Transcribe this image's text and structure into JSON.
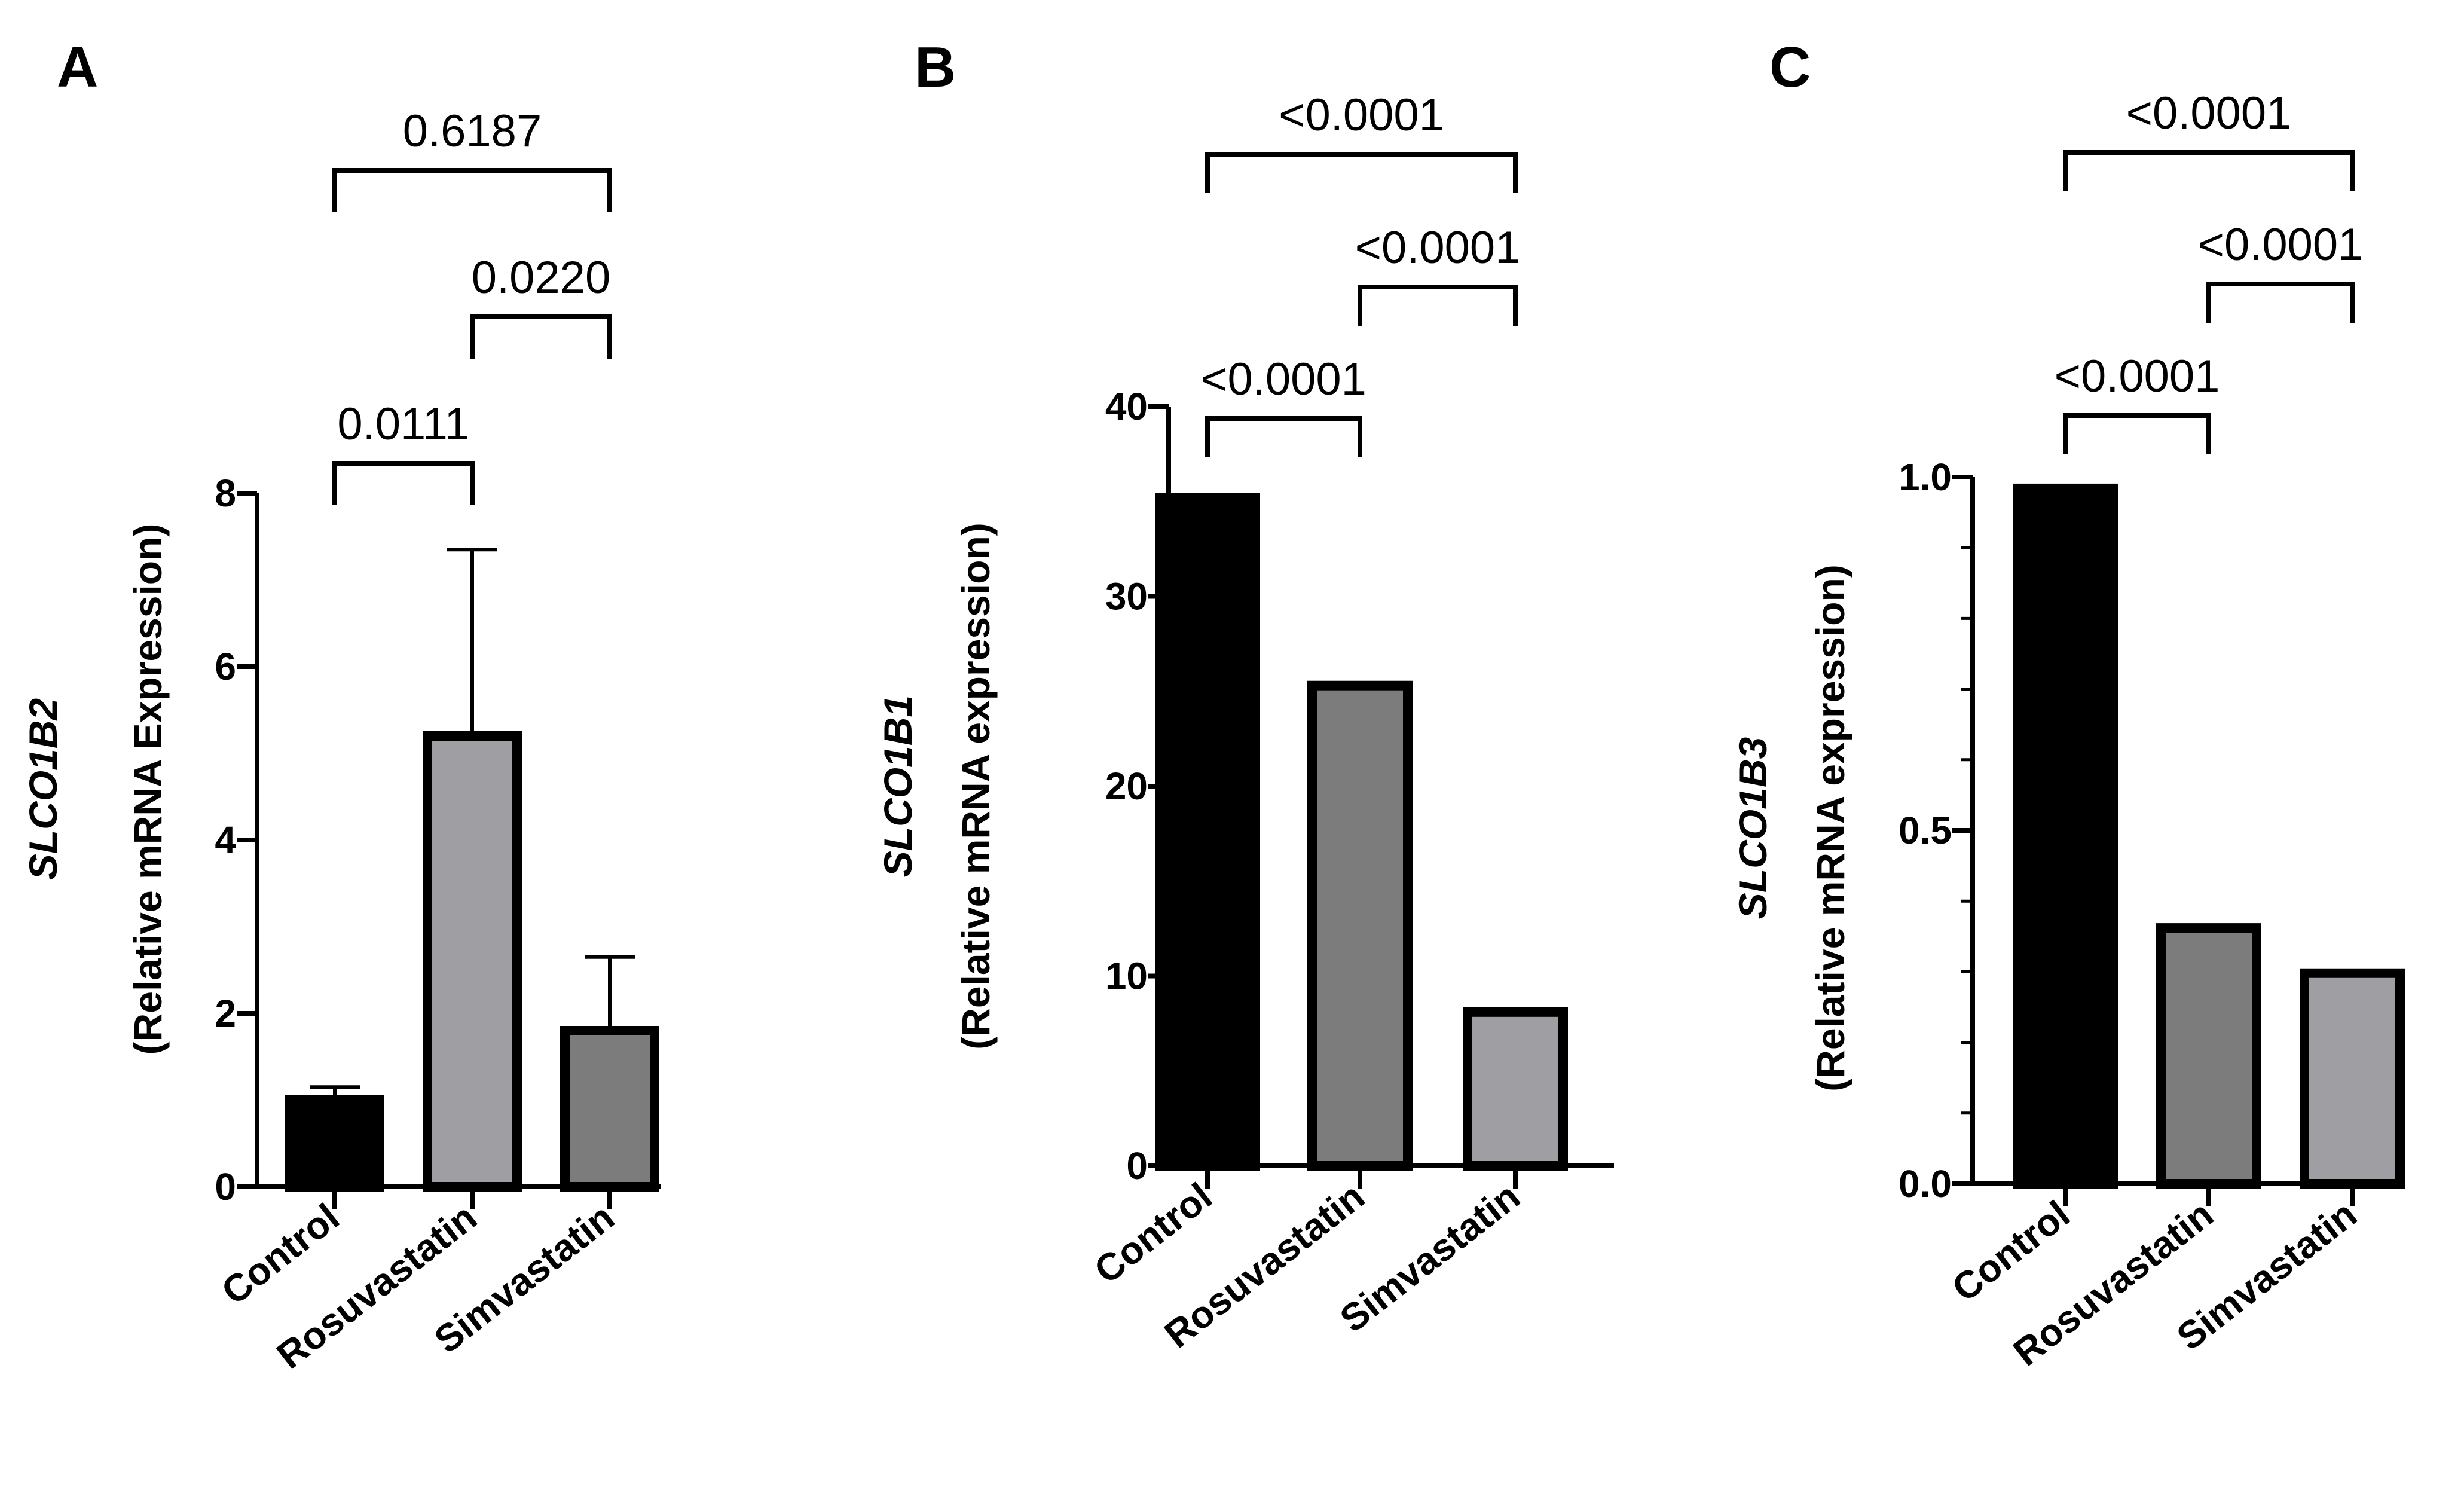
{
  "chart_data": [
    {
      "panel": "A",
      "type": "bar",
      "gene": "SLCO1B2",
      "ylabel": "(Relative mRNA Expression)",
      "ylim": [
        0,
        8
      ],
      "yticks": [
        0,
        2,
        4,
        6,
        8
      ],
      "yticks_text": [
        "0",
        "2",
        "4",
        "6",
        "8"
      ],
      "minor_ticks": false,
      "categories": [
        "Control",
        "Rosuvastatin",
        "Simvastatin"
      ],
      "values": [
        1.0,
        5.2,
        1.8
      ],
      "errors": [
        0.15,
        2.15,
        0.85
      ],
      "colors": [
        "#000000",
        "#9e9ea3",
        "#7c7c7c"
      ],
      "significance": [
        {
          "from": 0,
          "to": 1,
          "label": "0.0111",
          "level": 0
        },
        {
          "from": 1,
          "to": 2,
          "label": "0.0220",
          "level": 1
        },
        {
          "from": 0,
          "to": 2,
          "label": "0.6187",
          "level": 2
        }
      ]
    },
    {
      "panel": "B",
      "type": "bar",
      "gene": "SLCO1B1",
      "ylabel": "(Relative mRNA expression)",
      "ylim": [
        0,
        40
      ],
      "yticks": [
        0,
        10,
        20,
        30,
        40
      ],
      "yticks_text": [
        "0",
        "10",
        "20",
        "30",
        "40"
      ],
      "minor_ticks": false,
      "categories": [
        "Control",
        "Rosuvastatin",
        "Simvastatin"
      ],
      "values": [
        35.2,
        25.3,
        8.1
      ],
      "errors": [
        0,
        0,
        0
      ],
      "colors": [
        "#000000",
        "#7c7c7c",
        "#9e9ea3"
      ],
      "significance": [
        {
          "from": 0,
          "to": 1,
          "label": "<0.0001",
          "level": 0
        },
        {
          "from": 1,
          "to": 2,
          "label": "<0.0001",
          "level": 1
        },
        {
          "from": 0,
          "to": 2,
          "label": "<0.0001",
          "level": 2
        }
      ]
    },
    {
      "panel": "C",
      "type": "bar",
      "gene": "SLCO1B3",
      "ylabel": "(Relative mRNA expression)",
      "ylim": [
        0,
        1
      ],
      "yticks": [
        0,
        0.5,
        1
      ],
      "yticks_text": [
        "0.0",
        "0.5",
        "1.0"
      ],
      "minor_ticks": true,
      "categories": [
        "Control",
        "Rosuvastatin",
        "Simvastatin"
      ],
      "values": [
        0.984,
        0.362,
        0.298
      ],
      "errors": [
        0.003,
        0.003,
        0.002
      ],
      "colors": [
        "#000000",
        "#7c7c7c",
        "#9e9ea3"
      ],
      "significance": [
        {
          "from": 0,
          "to": 1,
          "label": "<0.0001",
          "level": 0
        },
        {
          "from": 1,
          "to": 2,
          "label": "<0.0001",
          "level": 1
        },
        {
          "from": 0,
          "to": 2,
          "label": "<0.0001",
          "level": 2
        }
      ]
    }
  ]
}
